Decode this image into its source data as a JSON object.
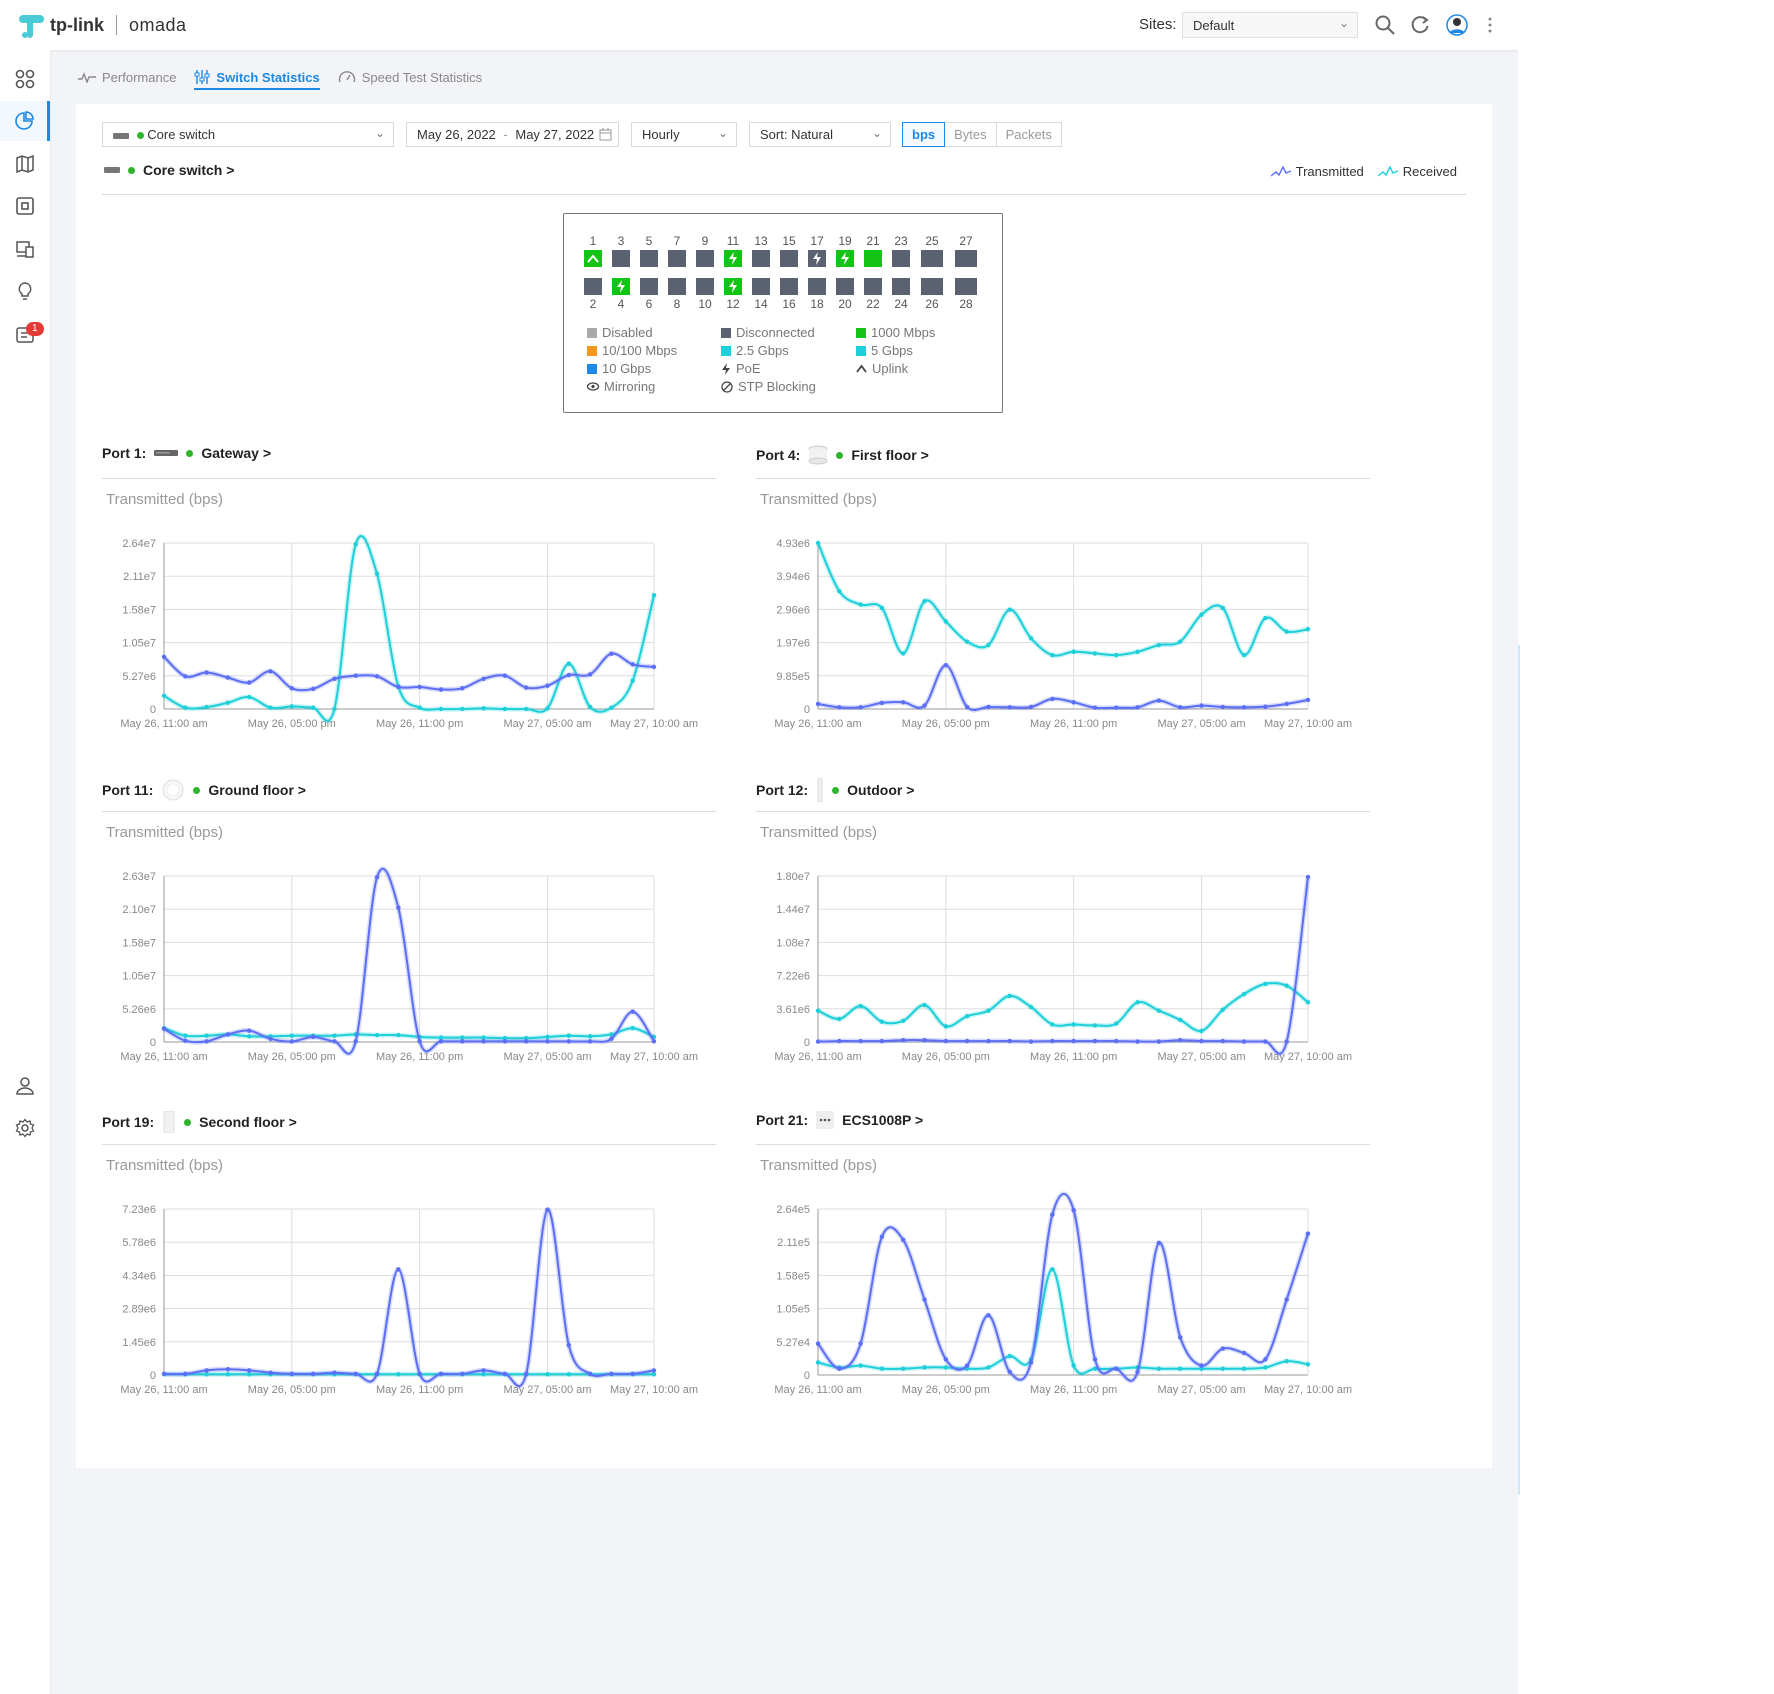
{
  "app": {
    "brand_tp": "tp-link",
    "brand_omada": "omada"
  },
  "header": {
    "sites_label": "Sites:",
    "site_value": "Default"
  },
  "sidebar": {
    "notifications_badge": "1"
  },
  "tabs": [
    {
      "label": "Performance",
      "icon": "pulse-icon"
    },
    {
      "label": "Switch Statistics",
      "icon": "sliders-icon"
    },
    {
      "label": "Speed Test Statistics",
      "icon": "speedometer-icon"
    }
  ],
  "filters": {
    "device": "Core switch",
    "date_from": "May 26, 2022",
    "date_sep": "-",
    "date_to": "May 27, 2022",
    "interval": "Hourly",
    "sort": "Sort: Natural",
    "units": [
      "bps",
      "Bytes",
      "Packets"
    ],
    "selected_unit": "bps"
  },
  "device_title": "Core switch >",
  "legend": {
    "transmitted": "Transmitted",
    "received": "Received"
  },
  "colors": {
    "transmitted": "#5b6ef5",
    "received": "#1ccfd8",
    "accent": "#1d88e5",
    "port_green": "#14c414",
    "port_gray": "#5a6272",
    "online_dot": "#2cb52c"
  },
  "panel": {
    "top_numbers": [
      "1",
      "3",
      "5",
      "7",
      "9",
      "11",
      "13",
      "15",
      "17",
      "19",
      "21",
      "23",
      "25",
      "27"
    ],
    "bottom_numbers": [
      "2",
      "4",
      "6",
      "8",
      "10",
      "12",
      "14",
      "16",
      "18",
      "20",
      "22",
      "24",
      "26",
      "28"
    ],
    "top_ports": [
      {
        "status": "green",
        "icon": "uplink"
      },
      {
        "status": "gray",
        "icon": ""
      },
      {
        "status": "gray",
        "icon": ""
      },
      {
        "status": "gray",
        "icon": ""
      },
      {
        "status": "gray",
        "icon": ""
      },
      {
        "status": "green",
        "icon": "poe"
      },
      {
        "status": "gray",
        "icon": ""
      },
      {
        "status": "gray",
        "icon": ""
      },
      {
        "status": "gray",
        "icon": "poe"
      },
      {
        "status": "green",
        "icon": "poe"
      },
      {
        "status": "green",
        "icon": ""
      },
      {
        "status": "gray",
        "icon": ""
      },
      {
        "status": "gray",
        "icon": ""
      },
      {
        "status": "gray",
        "icon": ""
      }
    ],
    "bottom_ports": [
      {
        "status": "gray",
        "icon": ""
      },
      {
        "status": "green",
        "icon": "poe"
      },
      {
        "status": "gray",
        "icon": ""
      },
      {
        "status": "gray",
        "icon": ""
      },
      {
        "status": "gray",
        "icon": ""
      },
      {
        "status": "green",
        "icon": "poe"
      },
      {
        "status": "gray",
        "icon": ""
      },
      {
        "status": "gray",
        "icon": ""
      },
      {
        "status": "gray",
        "icon": ""
      },
      {
        "status": "gray",
        "icon": ""
      },
      {
        "status": "gray",
        "icon": ""
      },
      {
        "status": "gray",
        "icon": ""
      },
      {
        "status": "gray",
        "icon": ""
      },
      {
        "status": "gray",
        "icon": ""
      }
    ],
    "legend": [
      {
        "label": "Disabled",
        "color": "#aaaaaa",
        "kind": "square"
      },
      {
        "label": "Disconnected",
        "color": "#5a6272",
        "kind": "square"
      },
      {
        "label": "1000 Mbps",
        "color": "#14c414",
        "kind": "square"
      },
      {
        "label": "10/100 Mbps",
        "color": "#f5961d",
        "kind": "square"
      },
      {
        "label": "2.5 Gbps",
        "color": "#1ccfd8",
        "kind": "square"
      },
      {
        "label": "5 Gbps",
        "color": "#1ccfd8",
        "kind": "square"
      },
      {
        "label": "10 Gbps",
        "color": "#1d88e5",
        "kind": "square"
      },
      {
        "label": "PoE",
        "color": "",
        "kind": "poe"
      },
      {
        "label": "Uplink",
        "color": "",
        "kind": "uplink"
      },
      {
        "label": "Mirroring",
        "color": "",
        "kind": "eye"
      },
      {
        "label": "STP Blocking",
        "color": "",
        "kind": "block"
      }
    ]
  },
  "ports": [
    {
      "port_label": "Port 1:",
      "device": "Gateway >",
      "device_icon": "gateway-icon",
      "online": true,
      "chart_title": "Transmitted (bps)"
    },
    {
      "port_label": "Port 4:",
      "device": "First floor >",
      "device_icon": "access-point-icon",
      "online": true,
      "chart_title": "Transmitted (bps)"
    },
    {
      "port_label": "Port 11:",
      "device": "Ground floor >",
      "device_icon": "ceiling-ap-icon",
      "online": true,
      "chart_title": "Transmitted (bps)"
    },
    {
      "port_label": "Port 12:",
      "device": "Outdoor >",
      "device_icon": "outdoor-ap-icon",
      "online": true,
      "chart_title": "Transmitted (bps)"
    },
    {
      "port_label": "Port 19:",
      "device": "Second floor >",
      "device_icon": "wall-ap-icon",
      "online": true,
      "chart_title": "Transmitted (bps)"
    },
    {
      "port_label": "Port 21:",
      "device": "ECS1008P >",
      "device_icon": "switch-icon",
      "online": false,
      "chart_title": "Transmitted (bps)"
    }
  ],
  "chart_data": [
    {
      "type": "line",
      "title": "Transmitted (bps)",
      "x_labels": [
        "May 26, 11:00 am",
        "May 26, 05:00 pm",
        "May 26, 11:00 pm",
        "May 27, 05:00 am",
        "May 27, 10:00 am"
      ],
      "x_label_index": [
        0,
        6,
        12,
        18,
        23
      ],
      "y_ticks": [
        "0",
        "5.27e6",
        "1.05e7",
        "1.58e7",
        "2.11e7",
        "2.64e7"
      ],
      "ylim": [
        0,
        26400000
      ],
      "series": [
        {
          "name": "Transmitted",
          "values": [
            8300000,
            5200000,
            5800000,
            5000000,
            4200000,
            6000000,
            3300000,
            3200000,
            4800000,
            5300000,
            5200000,
            3500000,
            3500000,
            3100000,
            3300000,
            4800000,
            5300000,
            3400000,
            3700000,
            5400000,
            5500000,
            8800000,
            7100000,
            6700000
          ]
        },
        {
          "name": "Received",
          "values": [
            2100000,
            200000,
            300000,
            1000000,
            1900000,
            200000,
            400000,
            200000,
            0,
            26200000,
            21500000,
            3600000,
            200000,
            0,
            0,
            100000,
            0,
            0,
            100000,
            7200000,
            300000,
            200000,
            4500000,
            18100000
          ]
        }
      ]
    },
    {
      "type": "line",
      "title": "Transmitted (bps)",
      "x_labels": [
        "May 26, 11:00 am",
        "May 26, 05:00 pm",
        "May 26, 11:00 pm",
        "May 27, 05:00 am",
        "May 27, 10:00 am"
      ],
      "x_label_index": [
        0,
        6,
        12,
        18,
        23
      ],
      "y_ticks": [
        "0",
        "9.85e5",
        "1.97e6",
        "2.96e6",
        "3.94e6",
        "4.93e6"
      ],
      "ylim": [
        0,
        4930000
      ],
      "series": [
        {
          "name": "Transmitted",
          "values": [
            150000,
            50000,
            50000,
            180000,
            200000,
            100000,
            1300000,
            60000,
            60000,
            50000,
            60000,
            300000,
            200000,
            40000,
            40000,
            50000,
            250000,
            50000,
            100000,
            60000,
            50000,
            70000,
            150000,
            270000
          ]
        },
        {
          "name": "Received",
          "values": [
            4930000,
            3500000,
            3100000,
            3000000,
            1650000,
            3200000,
            2600000,
            2000000,
            1900000,
            2950000,
            2100000,
            1600000,
            1700000,
            1650000,
            1600000,
            1700000,
            1900000,
            2000000,
            2800000,
            3000000,
            1600000,
            2700000,
            2300000,
            2370000
          ]
        }
      ]
    },
    {
      "type": "line",
      "title": "Transmitted (bps)",
      "x_labels": [
        "May 26, 11:00 am",
        "May 26, 05:00 pm",
        "May 26, 11:00 pm",
        "May 27, 05:00 am",
        "May 27, 10:00 am"
      ],
      "x_label_index": [
        0,
        6,
        12,
        18,
        23
      ],
      "y_ticks": [
        "0",
        "5.26e6",
        "1.05e7",
        "1.58e7",
        "2.10e7",
        "2.63e7"
      ],
      "ylim": [
        0,
        26300000
      ],
      "series": [
        {
          "name": "Transmitted",
          "values": [
            2100000,
            200000,
            100000,
            1200000,
            1800000,
            500000,
            100000,
            800000,
            100000,
            100000,
            26100000,
            21300000,
            100000,
            100000,
            100000,
            100000,
            100000,
            100000,
            100000,
            100000,
            100000,
            500000,
            4800000,
            100000
          ]
        },
        {
          "name": "Received",
          "values": [
            2200000,
            1000000,
            1000000,
            1200000,
            900000,
            900000,
            1000000,
            1000000,
            1000000,
            1200000,
            1100000,
            1100000,
            800000,
            700000,
            700000,
            700000,
            600000,
            600000,
            800000,
            1000000,
            900000,
            1200000,
            2200000,
            800000
          ]
        }
      ]
    },
    {
      "type": "line",
      "title": "Transmitted (bps)",
      "x_labels": [
        "May 26, 11:00 am",
        "May 26, 05:00 pm",
        "May 26, 11:00 pm",
        "May 27, 05:00 am",
        "May 27, 10:00 am"
      ],
      "x_label_index": [
        0,
        6,
        12,
        18,
        23
      ],
      "y_ticks": [
        "0",
        "3.61e6",
        "7.22e6",
        "1.08e7",
        "1.44e7",
        "1.80e7"
      ],
      "ylim": [
        0,
        18000000
      ],
      "series": [
        {
          "name": "Transmitted",
          "values": [
            50000,
            100000,
            100000,
            100000,
            200000,
            200000,
            100000,
            100000,
            100000,
            100000,
            50000,
            100000,
            100000,
            100000,
            100000,
            50000,
            50000,
            200000,
            100000,
            100000,
            50000,
            50000,
            50000,
            17900000
          ]
        },
        {
          "name": "Received",
          "values": [
            3400000,
            2500000,
            3900000,
            2200000,
            2300000,
            4000000,
            1700000,
            2800000,
            3400000,
            5000000,
            3800000,
            1900000,
            1900000,
            1800000,
            2000000,
            4300000,
            3400000,
            2400000,
            1200000,
            3500000,
            5200000,
            6300000,
            6100000,
            4300000
          ]
        }
      ]
    },
    {
      "type": "line",
      "title": "Transmitted (bps)",
      "x_labels": [
        "May 26, 11:00 am",
        "May 26, 05:00 pm",
        "May 26, 11:00 pm",
        "May 27, 05:00 am",
        "May 27, 10:00 am"
      ],
      "x_label_index": [
        0,
        6,
        12,
        18,
        23
      ],
      "y_ticks": [
        "0",
        "1.45e6",
        "2.89e6",
        "4.34e6",
        "5.78e6",
        "7.23e6"
      ],
      "ylim": [
        0,
        7230000
      ],
      "series": [
        {
          "name": "Transmitted",
          "values": [
            50000,
            50000,
            200000,
            250000,
            200000,
            100000,
            50000,
            50000,
            100000,
            50000,
            50000,
            4600000,
            50000,
            50000,
            50000,
            200000,
            50000,
            50000,
            7200000,
            1300000,
            50000,
            50000,
            50000,
            200000
          ]
        },
        {
          "name": "Received",
          "values": [
            30000,
            30000,
            30000,
            30000,
            30000,
            30000,
            30000,
            30000,
            30000,
            30000,
            30000,
            30000,
            30000,
            30000,
            30000,
            30000,
            30000,
            30000,
            30000,
            30000,
            30000,
            30000,
            30000,
            30000
          ]
        }
      ]
    },
    {
      "type": "line",
      "title": "Transmitted (bps)",
      "x_labels": [
        "May 26, 11:00 am",
        "May 26, 05:00 pm",
        "May 26, 11:00 pm",
        "May 27, 05:00 am",
        "May 27, 10:00 am"
      ],
      "x_label_index": [
        0,
        6,
        12,
        18,
        23
      ],
      "y_ticks": [
        "0",
        "5.27e4",
        "1.05e5",
        "1.58e5",
        "2.11e5",
        "2.64e5"
      ],
      "ylim": [
        0,
        264000
      ],
      "series": [
        {
          "name": "Transmitted",
          "values": [
            50000,
            10000,
            50000,
            220000,
            215000,
            120000,
            25000,
            15000,
            95000,
            5000,
            20000,
            255000,
            262000,
            25000,
            10000,
            5000,
            210000,
            60000,
            15000,
            42000,
            35000,
            25000,
            120000,
            225000
          ]
        },
        {
          "name": "Received",
          "values": [
            20000,
            12000,
            15000,
            10000,
            10000,
            12000,
            12000,
            10000,
            12000,
            30000,
            25000,
            168000,
            15000,
            10000,
            10000,
            12000,
            10000,
            10000,
            10000,
            10000,
            10000,
            12000,
            22000,
            17000
          ]
        }
      ]
    }
  ]
}
